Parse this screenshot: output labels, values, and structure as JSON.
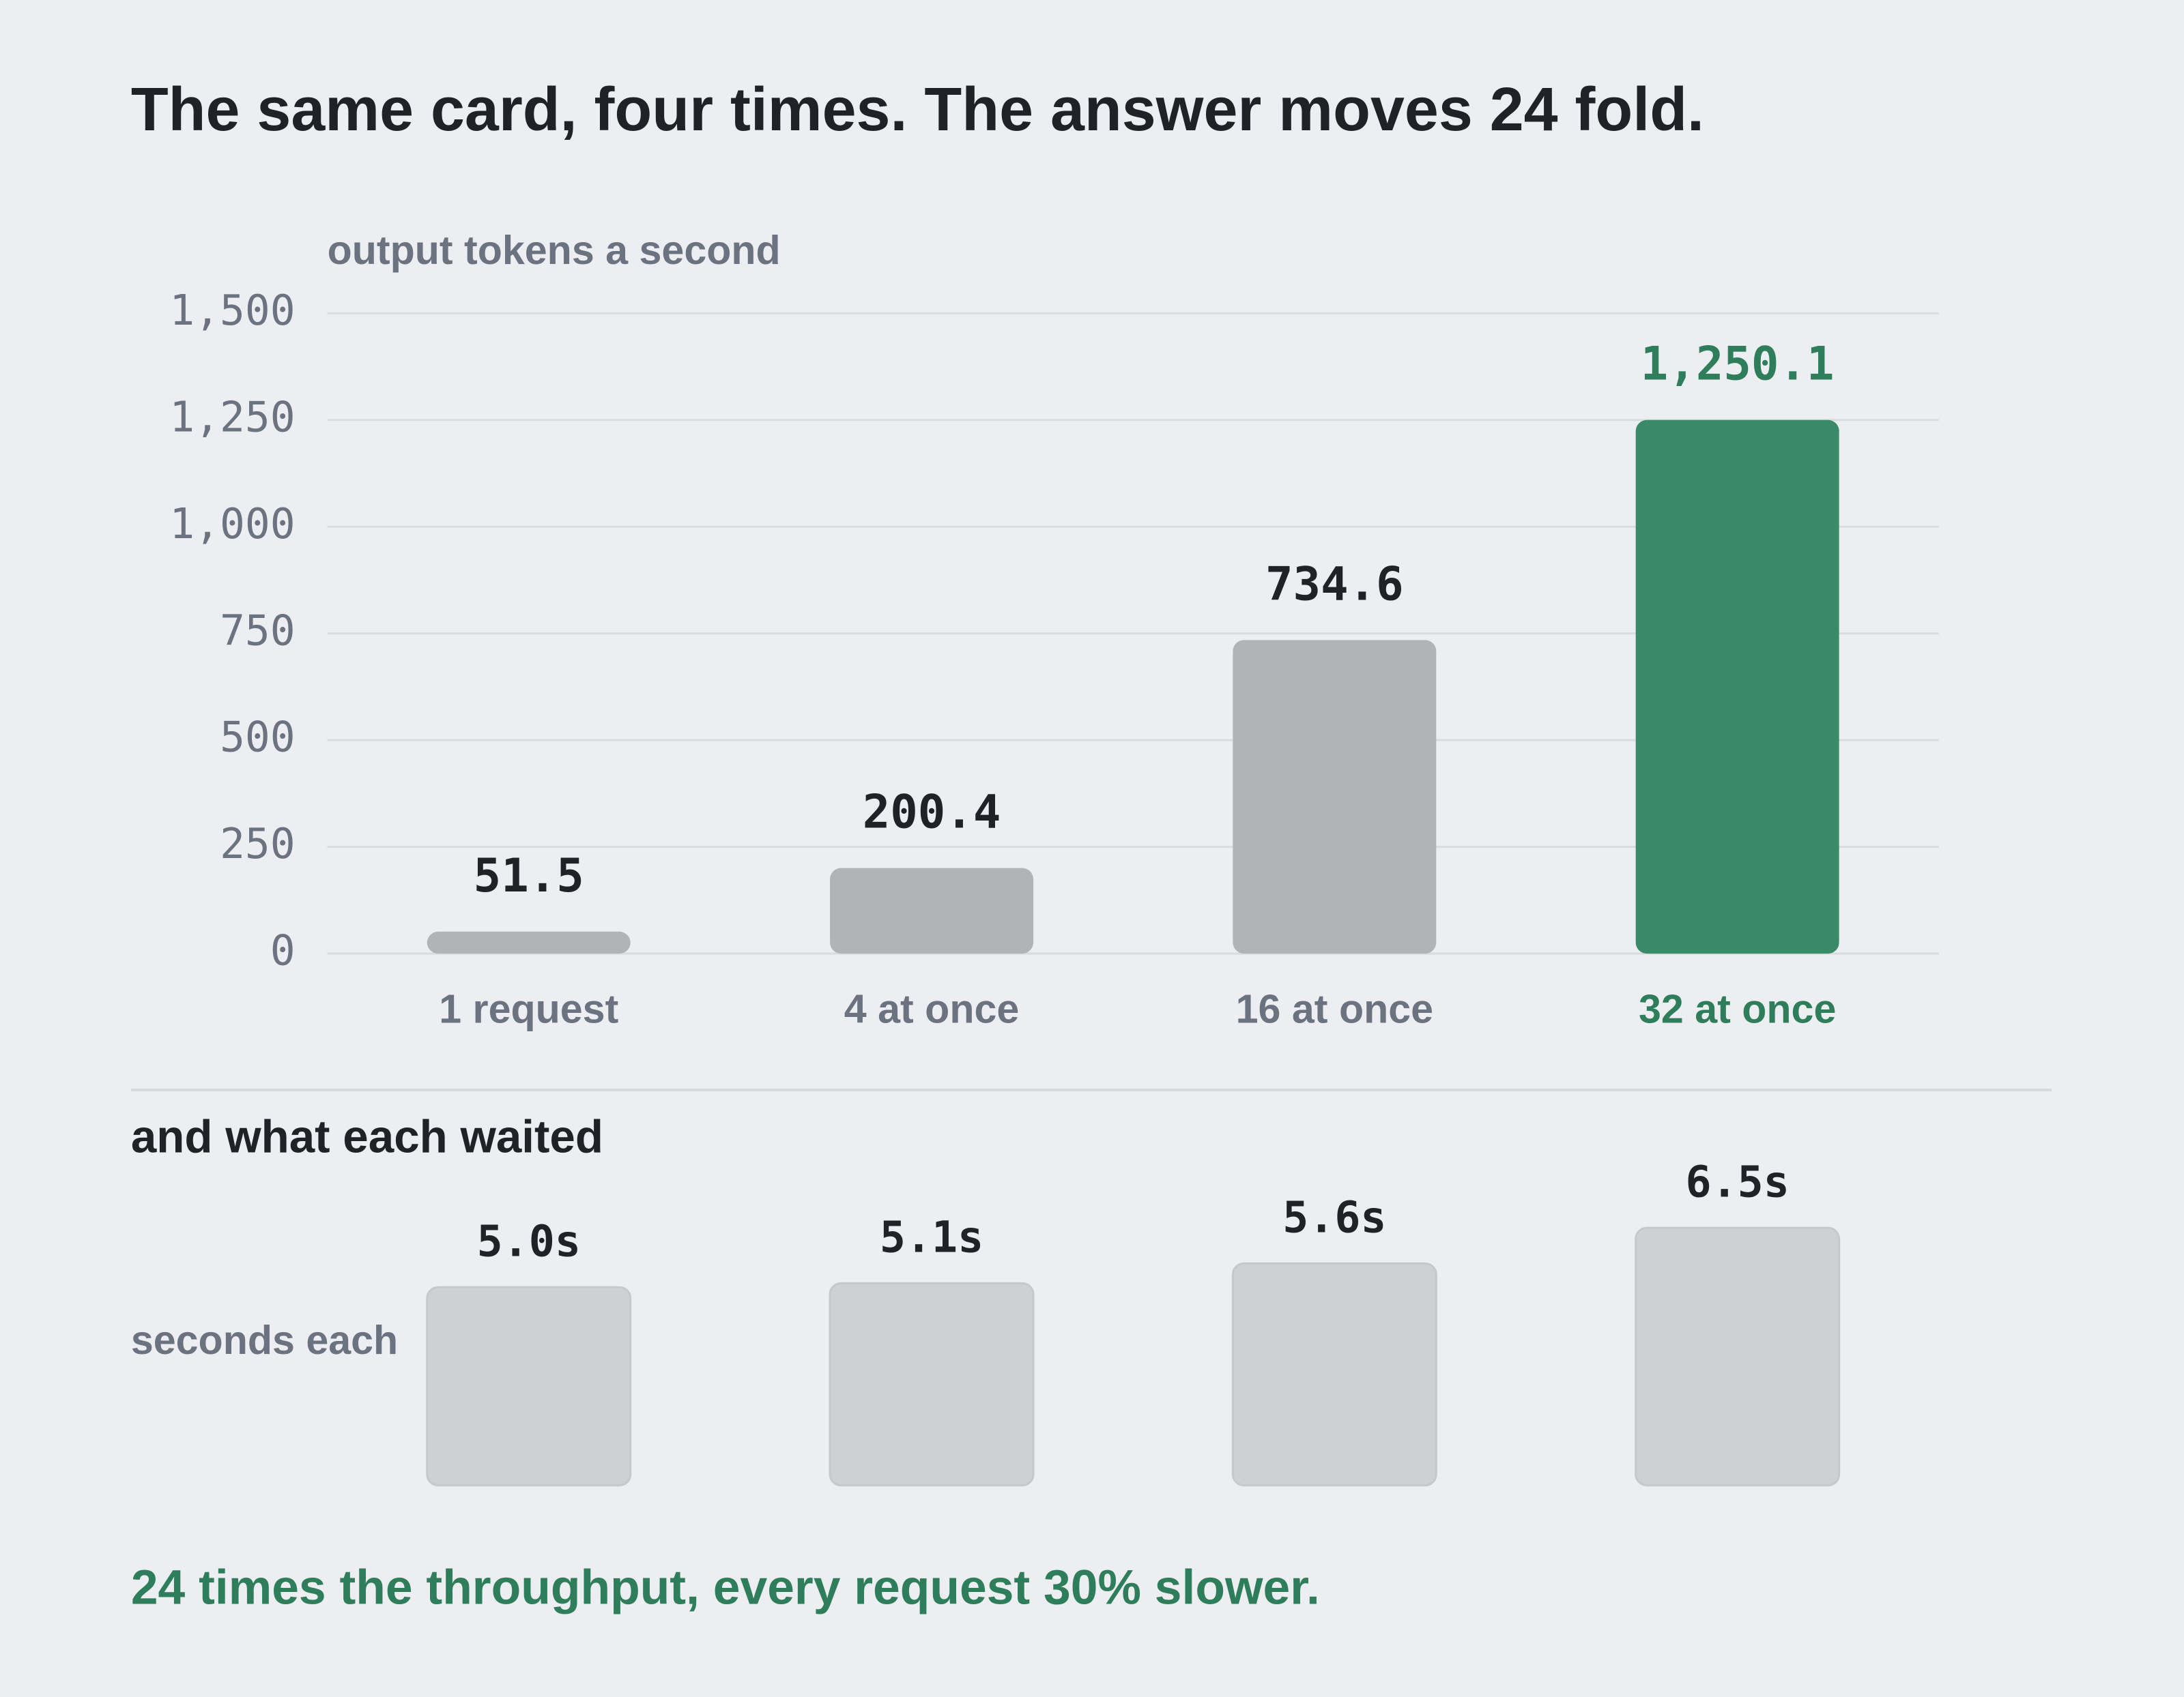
{
  "title": "The same card, four times. The answer moves 24 fold.",
  "note": "24 times the throughput, every request 30% slower.",
  "chart_data": [
    {
      "type": "bar",
      "y_label": "output tokens a second",
      "categories": [
        "1 request",
        "4 at once",
        "16 at once",
        "32 at once"
      ],
      "values": [
        51.5,
        200.4,
        734.6,
        1250.1
      ],
      "value_labels": [
        "51.5",
        "200.4",
        "734.6",
        "1,250.1"
      ],
      "colors": [
        "#b1b4b7",
        "#b1b4b7",
        "#b1b4b7",
        "#3a8a68"
      ],
      "label_colors": [
        "#6b7280",
        "#6b7280",
        "#6b7280",
        "#2e7d5b"
      ],
      "value_label_colors": [
        "#1f2328",
        "#1f2328",
        "#1f2328",
        "#2e7d5b"
      ],
      "ylim": [
        0,
        1500
      ],
      "yticks": [
        0,
        250,
        500,
        750,
        {
          "value": 1000,
          "label": "1,000"
        },
        {
          "value": 1250,
          "label": "1,250"
        },
        {
          "value": 1500,
          "label": "1,500"
        }
      ],
      "grid": true
    },
    {
      "type": "bar",
      "title": "and what each waited",
      "y_label": "seconds each",
      "values": [
        5.0,
        5.1,
        5.6,
        6.5
      ],
      "value_labels": [
        "5.0s",
        "5.1s",
        "5.6s",
        "6.5s"
      ],
      "color": "#cfd0d3"
    }
  ]
}
